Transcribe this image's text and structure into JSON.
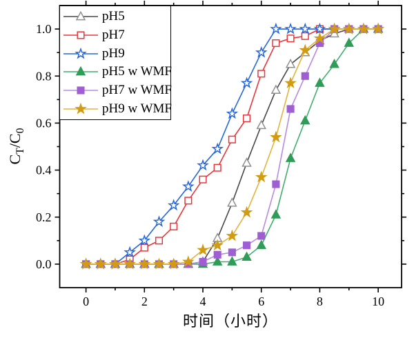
{
  "chart_data": {
    "type": "line",
    "title": "",
    "xlabel": "时间（小时）",
    "ylabel": "C_T/C_0",
    "ylabel_parts": [
      {
        "t": "C"
      },
      {
        "t": "T",
        "sub": true
      },
      {
        "t": "/C"
      },
      {
        "t": "0",
        "sub": true
      }
    ],
    "xlim": [
      -0.9,
      10.8
    ],
    "ylim": [
      -0.1,
      1.1
    ],
    "x_ticks": [
      0,
      2,
      4,
      6,
      8,
      10
    ],
    "x_tick_labels": [
      "0",
      "2",
      "4",
      "6",
      "8",
      "10"
    ],
    "x_minor_ticks": [
      1,
      3,
      5,
      7,
      9
    ],
    "y_ticks": [
      0.0,
      0.2,
      0.4,
      0.6,
      0.8,
      1.0
    ],
    "y_tick_labels": [
      "0.0",
      "0.2",
      "0.4",
      "0.6",
      "0.8",
      "1.0"
    ],
    "y_minor_ticks": [
      0.1,
      0.3,
      0.5,
      0.7,
      0.9
    ],
    "grid": false,
    "legend_position": "top-left",
    "axis_color": "#000000",
    "background": "#ffffff",
    "x": [
      0,
      0.5,
      1,
      1.5,
      2,
      2.5,
      3,
      3.5,
      4,
      4.5,
      5,
      5.5,
      6,
      6.5,
      7,
      7.5,
      8,
      8.5,
      9,
      9.5,
      10
    ],
    "series": [
      {
        "name": "pH5",
        "marker": "triangle",
        "filled": false,
        "line_color": "#474747",
        "marker_color": "#8f8f8f",
        "values": [
          0,
          0,
          0,
          0,
          0,
          0,
          0,
          0,
          0.01,
          0.11,
          0.26,
          0.43,
          0.59,
          0.74,
          0.85,
          0.9,
          0.95,
          0.98,
          1.0,
          1.0,
          1.0
        ]
      },
      {
        "name": "pH7",
        "marker": "square",
        "filled": false,
        "line_color": "#e8363b",
        "marker_color": "#e8363b",
        "values": [
          0,
          0,
          0,
          0.02,
          0.07,
          0.1,
          0.16,
          0.27,
          0.36,
          0.41,
          0.53,
          0.62,
          0.81,
          0.94,
          0.96,
          0.97,
          1.0,
          1.0,
          1.0,
          1.0,
          1.0
        ]
      },
      {
        "name": "pH9",
        "marker": "star",
        "filled": false,
        "line_color": "#2566dd",
        "marker_color": "#2566dd",
        "values": [
          0,
          0,
          0,
          0.05,
          0.1,
          0.18,
          0.25,
          0.33,
          0.42,
          0.49,
          0.64,
          0.77,
          0.9,
          1.0,
          1.0,
          1.0,
          1.0,
          1.0,
          1.0,
          1.0,
          1.0
        ]
      },
      {
        "name": "pH5 w WMF",
        "marker": "triangle",
        "filled": true,
        "line_color": "#3fae6d",
        "marker_color": "#2f9c58",
        "values": [
          0,
          0,
          0,
          0,
          0,
          0,
          0,
          0,
          0,
          0.01,
          0.01,
          0.03,
          0.08,
          0.21,
          0.45,
          0.61,
          0.77,
          0.85,
          0.94,
          1.0,
          1.0
        ]
      },
      {
        "name": "pH7 w WMF",
        "marker": "square",
        "filled": true,
        "line_color": "#b78ae2",
        "marker_color": "#9f5fd2",
        "values": [
          0,
          0,
          0,
          0,
          0,
          0,
          0,
          0,
          0.01,
          0.04,
          0.05,
          0.08,
          0.12,
          0.34,
          0.66,
          0.8,
          0.94,
          1.0,
          1.0,
          1.0,
          1.0
        ]
      },
      {
        "name": "pH9 w WMF",
        "marker": "star",
        "filled": true,
        "line_color": "#e3b33c",
        "marker_color": "#d29c12",
        "values": [
          0,
          0,
          0,
          0,
          0,
          0,
          0,
          0.01,
          0.06,
          0.08,
          0.12,
          0.22,
          0.37,
          0.54,
          0.77,
          0.91,
          0.96,
          1.0,
          1.0,
          1.0,
          1.0
        ]
      }
    ]
  }
}
